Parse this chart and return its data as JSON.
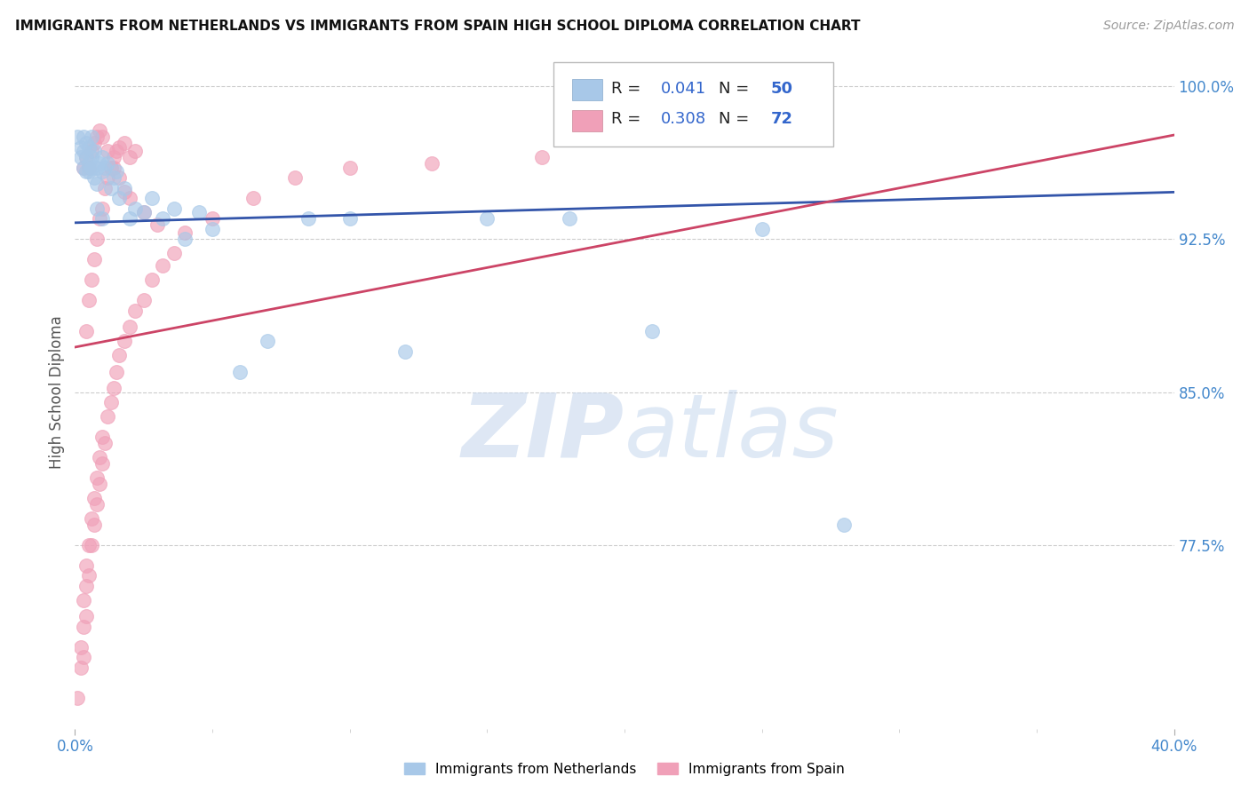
{
  "title": "IMMIGRANTS FROM NETHERLANDS VS IMMIGRANTS FROM SPAIN HIGH SCHOOL DIPLOMA CORRELATION CHART",
  "source": "Source: ZipAtlas.com",
  "ylabel": "High School Diploma",
  "yticks": [
    "100.0%",
    "92.5%",
    "85.0%",
    "77.5%"
  ],
  "ytick_vals": [
    1.0,
    0.925,
    0.85,
    0.775
  ],
  "xmin": 0.0,
  "xmax": 0.4,
  "ymin": 0.685,
  "ymax": 1.015,
  "legend_label1": "Immigrants from Netherlands",
  "legend_label2": "Immigrants from Spain",
  "R1": 0.041,
  "N1": 50,
  "R2": 0.308,
  "N2": 72,
  "blue_color": "#a8c8e8",
  "pink_color": "#f0a0b8",
  "blue_line_color": "#3355aa",
  "pink_line_color": "#cc4466",
  "blue_line_x0": 0.0,
  "blue_line_y0": 0.933,
  "blue_line_x1": 0.4,
  "blue_line_y1": 0.948,
  "pink_line_x0": 0.0,
  "pink_line_y0": 0.872,
  "pink_line_x1": 0.4,
  "pink_line_y1": 0.976,
  "blue_x": [
    0.001,
    0.002,
    0.002,
    0.003,
    0.003,
    0.003,
    0.004,
    0.004,
    0.004,
    0.005,
    0.005,
    0.005,
    0.006,
    0.006,
    0.007,
    0.007,
    0.008,
    0.008,
    0.009,
    0.01,
    0.01,
    0.011,
    0.012,
    0.013,
    0.014,
    0.015,
    0.016,
    0.018,
    0.02,
    0.022,
    0.025,
    0.028,
    0.032,
    0.036,
    0.04,
    0.045,
    0.05,
    0.06,
    0.07,
    0.085,
    0.1,
    0.12,
    0.15,
    0.18,
    0.21,
    0.25,
    0.28,
    0.01,
    0.008,
    0.006
  ],
  "blue_y": [
    0.975,
    0.97,
    0.965,
    0.975,
    0.968,
    0.96,
    0.972,
    0.965,
    0.958,
    0.97,
    0.962,
    0.958,
    0.965,
    0.96,
    0.955,
    0.968,
    0.96,
    0.952,
    0.962,
    0.958,
    0.965,
    0.96,
    0.962,
    0.95,
    0.955,
    0.958,
    0.945,
    0.95,
    0.935,
    0.94,
    0.938,
    0.945,
    0.935,
    0.94,
    0.925,
    0.938,
    0.93,
    0.86,
    0.875,
    0.935,
    0.935,
    0.87,
    0.935,
    0.935,
    0.88,
    0.93,
    0.785,
    0.935,
    0.94,
    0.975
  ],
  "pink_x": [
    0.001,
    0.002,
    0.002,
    0.003,
    0.003,
    0.003,
    0.004,
    0.004,
    0.004,
    0.005,
    0.005,
    0.006,
    0.006,
    0.007,
    0.007,
    0.008,
    0.008,
    0.009,
    0.009,
    0.01,
    0.01,
    0.011,
    0.012,
    0.013,
    0.014,
    0.015,
    0.016,
    0.018,
    0.02,
    0.022,
    0.025,
    0.028,
    0.032,
    0.036,
    0.05,
    0.065,
    0.08,
    0.1,
    0.13,
    0.17,
    0.004,
    0.005,
    0.006,
    0.007,
    0.008,
    0.009,
    0.01,
    0.011,
    0.012,
    0.013,
    0.014,
    0.015,
    0.016,
    0.018,
    0.02,
    0.022,
    0.003,
    0.004,
    0.005,
    0.006,
    0.007,
    0.008,
    0.009,
    0.01,
    0.012,
    0.014,
    0.016,
    0.018,
    0.02,
    0.025,
    0.03,
    0.04
  ],
  "pink_y": [
    0.7,
    0.715,
    0.725,
    0.72,
    0.735,
    0.748,
    0.74,
    0.755,
    0.765,
    0.76,
    0.775,
    0.775,
    0.788,
    0.785,
    0.798,
    0.795,
    0.808,
    0.805,
    0.818,
    0.815,
    0.828,
    0.825,
    0.838,
    0.845,
    0.852,
    0.86,
    0.868,
    0.875,
    0.882,
    0.89,
    0.895,
    0.905,
    0.912,
    0.918,
    0.935,
    0.945,
    0.955,
    0.96,
    0.962,
    0.965,
    0.88,
    0.895,
    0.905,
    0.915,
    0.925,
    0.935,
    0.94,
    0.95,
    0.955,
    0.96,
    0.965,
    0.968,
    0.97,
    0.972,
    0.965,
    0.968,
    0.96,
    0.965,
    0.96,
    0.968,
    0.972,
    0.975,
    0.978,
    0.975,
    0.968,
    0.96,
    0.955,
    0.948,
    0.945,
    0.938,
    0.932,
    0.928
  ]
}
